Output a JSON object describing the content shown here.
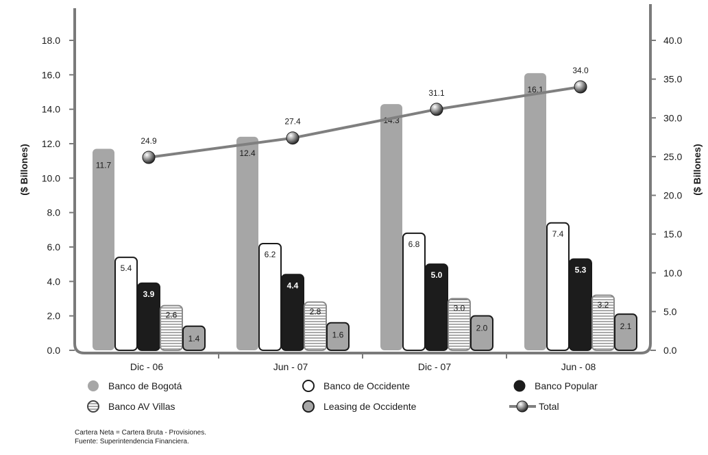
{
  "chart_data": {
    "type": "bar",
    "categories": [
      "Dic - 06",
      "Jun - 07",
      "Dic - 07",
      "Jun - 08"
    ],
    "ylabel_left": "($ Billones)",
    "ylabel_right": "($ Billones)",
    "ylim_left": [
      0,
      18
    ],
    "ylim_right": [
      0,
      40
    ],
    "yticks_left": [
      "0.0",
      "2.0",
      "4.0",
      "6.0",
      "8.0",
      "10.0",
      "12.0",
      "14.0",
      "16.0",
      "18.0"
    ],
    "yticks_right": [
      "0.0",
      "5.0",
      "10.0",
      "15.0",
      "20.0",
      "25.0",
      "30.0",
      "35.0",
      "40.0"
    ],
    "series": [
      {
        "name": "Banco de Bogotá",
        "values": [
          11.7,
          12.4,
          14.3,
          16.1
        ],
        "labels": [
          "11.7",
          "12.4",
          "14.3",
          "16.1"
        ],
        "color": "#a6a6a6",
        "style": "gray"
      },
      {
        "name": "Banco de Occidente",
        "values": [
          5.4,
          6.2,
          6.8,
          7.4
        ],
        "labels": [
          "5.4",
          "6.2",
          "6.8",
          "7.4"
        ],
        "color": "#ffffff",
        "style": "white"
      },
      {
        "name": "Banco Popular",
        "values": [
          3.9,
          4.4,
          5.0,
          5.3
        ],
        "labels": [
          "3.9",
          "4.4",
          "5.0",
          "5.3"
        ],
        "color": "#1c1c1c",
        "style": "black"
      },
      {
        "name": "Banco AV Villas",
        "values": [
          2.6,
          2.8,
          3.0,
          3.2
        ],
        "labels": [
          "2.6",
          "2.8",
          "3.0",
          "3.2"
        ],
        "color": "#ffffff",
        "style": "striped"
      },
      {
        "name": "Leasing de Occidente",
        "values": [
          1.4,
          1.6,
          2.0,
          2.1
        ],
        "labels": [
          "1.4",
          "1.6",
          "2.0",
          "2.1"
        ],
        "color": "#a6a6a6",
        "style": "gray-outlined"
      }
    ],
    "line_series": {
      "name": "Total",
      "axis": "right",
      "values": [
        24.9,
        27.4,
        31.1,
        34.0
      ],
      "labels": [
        "24.9",
        "27.4",
        "31.1",
        "34.0"
      ],
      "color": "#7f7f7f"
    },
    "legend_placement": "bottom",
    "grid": false
  },
  "notes": [
    "Cartera Neta = Cartera Bruta - Provisiones.",
    "Fuente: Superintendencia Financiera."
  ]
}
